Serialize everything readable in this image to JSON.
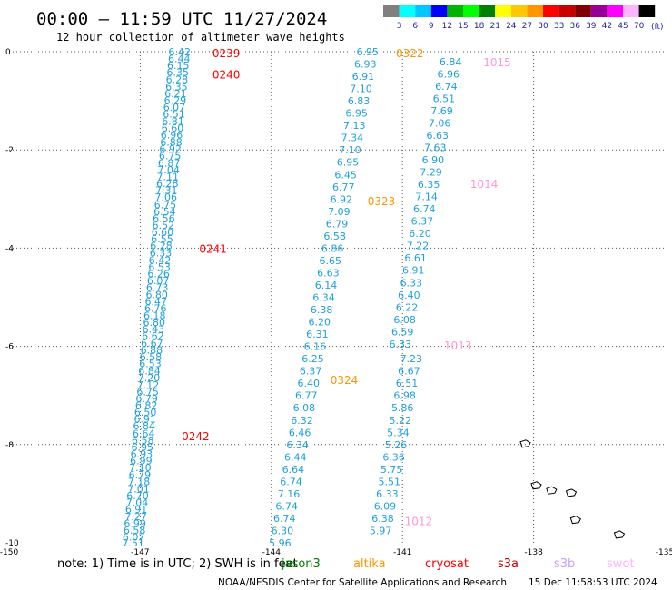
{
  "title": "00:00 – 11:59 UTC 11/27/2024",
  "subtitle": "12 hour collection of altimeter wave heights",
  "legend": {
    "unit": "(ft)",
    "colors": [
      "#808080",
      "#00ffff",
      "#00c8ff",
      "#0000ff",
      "#00b400",
      "#00ff00",
      "#008000",
      "#ffff00",
      "#ffc800",
      "#ff9600",
      "#ff0000",
      "#c80000",
      "#800000",
      "#960096",
      "#ff00ff",
      "#ffb4ff",
      "#000000"
    ],
    "labels": [
      "3",
      "6",
      "9",
      "12",
      "15",
      "18",
      "21",
      "24",
      "27",
      "30",
      "33",
      "36",
      "39",
      "42",
      "45",
      "70"
    ]
  },
  "footer": {
    "note": "note: 1) Time is in UTC; 2) SWH is in feet",
    "credit": "NOAA/NESDIS Center for Satellite Applications and Research",
    "timestamp": "15 Dec 11:58:53 UTC 2024",
    "satellites": [
      {
        "name": "jason3",
        "color": "#008000"
      },
      {
        "name": "altika",
        "color": "#ff9600"
      },
      {
        "name": "cryosat",
        "color": "#ff0000"
      },
      {
        "name": "s3a",
        "color": "#c80000"
      },
      {
        "name": "s3b",
        "color": "#c8a0ff"
      },
      {
        "name": "swot",
        "color": "#ffb4ff"
      }
    ]
  },
  "chart_data": {
    "type": "scatter",
    "xlim": [
      -150,
      -135
    ],
    "ylim": [
      -10,
      0
    ],
    "x_ticks": [
      "-150",
      "-147",
      "-144",
      "-141",
      "-138",
      "-135"
    ],
    "y_ticks": [
      "0",
      "-2",
      "-4",
      "-6",
      "-8",
      "-10"
    ],
    "grid": true,
    "tracks": [
      {
        "id": "track-1",
        "color": "#1ea0dc",
        "points": [
          {
            "x": -146.1,
            "y": 0.0,
            "v": "6.42"
          },
          {
            "x": -146.11,
            "y": -0.14,
            "v": "6.44"
          },
          {
            "x": -146.13,
            "y": -0.28,
            "v": "6.15"
          },
          {
            "x": -146.14,
            "y": -0.42,
            "v": "6.35"
          },
          {
            "x": -146.16,
            "y": -0.56,
            "v": "6.28"
          },
          {
            "x": -146.17,
            "y": -0.71,
            "v": "6.35"
          },
          {
            "x": -146.19,
            "y": -0.85,
            "v": "6.21"
          },
          {
            "x": -146.2,
            "y": -0.99,
            "v": "6.29"
          },
          {
            "x": -146.22,
            "y": -1.13,
            "v": "6.07"
          },
          {
            "x": -146.23,
            "y": -1.27,
            "v": "6.51"
          },
          {
            "x": -146.25,
            "y": -1.41,
            "v": "6.81"
          },
          {
            "x": -146.26,
            "y": -1.55,
            "v": "6.60"
          },
          {
            "x": -146.28,
            "y": -1.69,
            "v": "6.96"
          },
          {
            "x": -146.29,
            "y": -1.84,
            "v": "6.88"
          },
          {
            "x": -146.31,
            "y": -1.98,
            "v": "6.92"
          },
          {
            "x": -146.32,
            "y": -2.12,
            "v": "6.75"
          },
          {
            "x": -146.34,
            "y": -2.26,
            "v": "6.87"
          },
          {
            "x": -146.35,
            "y": -2.4,
            "v": "7.04"
          },
          {
            "x": -146.37,
            "y": -2.54,
            "v": "7.11"
          },
          {
            "x": -146.38,
            "y": -2.68,
            "v": "6.28"
          },
          {
            "x": -146.4,
            "y": -2.82,
            "v": "7.31"
          },
          {
            "x": -146.41,
            "y": -2.96,
            "v": "7.06"
          },
          {
            "x": -146.43,
            "y": -3.11,
            "v": "6.75"
          },
          {
            "x": -146.44,
            "y": -3.25,
            "v": "6.54"
          },
          {
            "x": -146.46,
            "y": -3.39,
            "v": "6.56"
          },
          {
            "x": -146.47,
            "y": -3.53,
            "v": "6.52"
          },
          {
            "x": -146.49,
            "y": -3.67,
            "v": "6.60"
          },
          {
            "x": -146.5,
            "y": -3.81,
            "v": "6.55"
          },
          {
            "x": -146.52,
            "y": -3.95,
            "v": "6.28"
          },
          {
            "x": -146.53,
            "y": -4.09,
            "v": "6.33"
          },
          {
            "x": -146.55,
            "y": -4.24,
            "v": "6.42"
          },
          {
            "x": -146.56,
            "y": -4.38,
            "v": "6.53"
          },
          {
            "x": -146.58,
            "y": -4.52,
            "v": "6.26"
          },
          {
            "x": -146.59,
            "y": -4.66,
            "v": "6.07"
          },
          {
            "x": -146.61,
            "y": -4.8,
            "v": "6.73"
          },
          {
            "x": -146.62,
            "y": -4.94,
            "v": "6.80"
          },
          {
            "x": -146.64,
            "y": -5.08,
            "v": "6.47"
          },
          {
            "x": -146.65,
            "y": -5.22,
            "v": "6.76"
          },
          {
            "x": -146.67,
            "y": -5.37,
            "v": "6.18"
          },
          {
            "x": -146.68,
            "y": -5.51,
            "v": "6.80"
          },
          {
            "x": -146.7,
            "y": -5.65,
            "v": "6.43"
          },
          {
            "x": -146.71,
            "y": -5.79,
            "v": "6.62"
          },
          {
            "x": -146.73,
            "y": -5.93,
            "v": "6.67"
          },
          {
            "x": -146.74,
            "y": -6.07,
            "v": "6.88"
          },
          {
            "x": -146.76,
            "y": -6.21,
            "v": "6.58"
          },
          {
            "x": -146.77,
            "y": -6.35,
            "v": "6.53"
          },
          {
            "x": -146.79,
            "y": -6.5,
            "v": "6.84"
          },
          {
            "x": -146.8,
            "y": -6.64,
            "v": "7.20"
          },
          {
            "x": -146.82,
            "y": -6.78,
            "v": "7.12"
          },
          {
            "x": -146.83,
            "y": -6.92,
            "v": "6.75"
          },
          {
            "x": -146.85,
            "y": -7.06,
            "v": "6.79"
          },
          {
            "x": -146.86,
            "y": -7.2,
            "v": "6.82"
          },
          {
            "x": -146.88,
            "y": -7.34,
            "v": "6.50"
          },
          {
            "x": -146.89,
            "y": -7.48,
            "v": "6.91"
          },
          {
            "x": -146.91,
            "y": -7.62,
            "v": "6.84"
          },
          {
            "x": -146.92,
            "y": -7.77,
            "v": "6.64"
          },
          {
            "x": -146.94,
            "y": -7.91,
            "v": "6.58"
          },
          {
            "x": -146.95,
            "y": -8.05,
            "v": "6.95"
          },
          {
            "x": -146.97,
            "y": -8.19,
            "v": "6.93"
          },
          {
            "x": -146.98,
            "y": -8.33,
            "v": "6.99"
          },
          {
            "x": -147.0,
            "y": -8.47,
            "v": "7.10"
          },
          {
            "x": -147.01,
            "y": -8.61,
            "v": "6.79"
          },
          {
            "x": -147.03,
            "y": -8.75,
            "v": "7.18"
          },
          {
            "x": -147.04,
            "y": -8.9,
            "v": "7.01"
          },
          {
            "x": -147.06,
            "y": -9.04,
            "v": "6.70"
          },
          {
            "x": -147.07,
            "y": -9.18,
            "v": "7.04"
          },
          {
            "x": -147.09,
            "y": -9.32,
            "v": "6.91"
          },
          {
            "x": -147.1,
            "y": -9.46,
            "v": "7.27"
          },
          {
            "x": -147.12,
            "y": -9.6,
            "v": "6.99"
          },
          {
            "x": -147.13,
            "y": -9.74,
            "v": "6.58"
          },
          {
            "x": -147.15,
            "y": -9.88,
            "v": "6.07"
          },
          {
            "x": -147.16,
            "y": -10.0,
            "v": "7.51"
          }
        ]
      },
      {
        "id": "track-2",
        "color": "#1ea0dc",
        "points": [
          {
            "x": -141.8,
            "y": 0.0,
            "v": "6.95"
          },
          {
            "x": -141.85,
            "y": -0.25,
            "v": "6.93"
          },
          {
            "x": -141.9,
            "y": -0.5,
            "v": "6.91"
          },
          {
            "x": -141.95,
            "y": -0.75,
            "v": "7.10"
          },
          {
            "x": -142.0,
            "y": -1.0,
            "v": "6.83"
          },
          {
            "x": -142.05,
            "y": -1.25,
            "v": "6.95"
          },
          {
            "x": -142.1,
            "y": -1.5,
            "v": "7.13"
          },
          {
            "x": -142.15,
            "y": -1.75,
            "v": "7.34"
          },
          {
            "x": -142.2,
            "y": -2.0,
            "v": "7.10"
          },
          {
            "x": -142.25,
            "y": -2.25,
            "v": "6.95"
          },
          {
            "x": -142.3,
            "y": -2.5,
            "v": "6.45"
          },
          {
            "x": -142.35,
            "y": -2.75,
            "v": "6.77"
          },
          {
            "x": -142.4,
            "y": -3.0,
            "v": "6.92"
          },
          {
            "x": -142.45,
            "y": -3.25,
            "v": "7.09"
          },
          {
            "x": -142.5,
            "y": -3.5,
            "v": "6.79"
          },
          {
            "x": -142.55,
            "y": -3.75,
            "v": "6.58"
          },
          {
            "x": -142.6,
            "y": -4.0,
            "v": "6.86"
          },
          {
            "x": -142.65,
            "y": -4.25,
            "v": "6.65"
          },
          {
            "x": -142.7,
            "y": -4.5,
            "v": "6.63"
          },
          {
            "x": -142.75,
            "y": -4.75,
            "v": "6.14"
          },
          {
            "x": -142.8,
            "y": -5.0,
            "v": "6.34"
          },
          {
            "x": -142.85,
            "y": -5.25,
            "v": "6.38"
          },
          {
            "x": -142.9,
            "y": -5.5,
            "v": "6.20"
          },
          {
            "x": -142.95,
            "y": -5.75,
            "v": "6.31"
          },
          {
            "x": -143.0,
            "y": -6.0,
            "v": "6.16"
          },
          {
            "x": -143.05,
            "y": -6.25,
            "v": "6.25"
          },
          {
            "x": -143.1,
            "y": -6.5,
            "v": "6.37"
          },
          {
            "x": -143.15,
            "y": -6.75,
            "v": "6.40"
          },
          {
            "x": -143.2,
            "y": -7.0,
            "v": "6.77"
          },
          {
            "x": -143.25,
            "y": -7.25,
            "v": "6.08"
          },
          {
            "x": -143.3,
            "y": -7.5,
            "v": "6.32"
          },
          {
            "x": -143.35,
            "y": -7.75,
            "v": "6.46"
          },
          {
            "x": -143.4,
            "y": -8.0,
            "v": "6.34"
          },
          {
            "x": -143.45,
            "y": -8.25,
            "v": "6.44"
          },
          {
            "x": -143.5,
            "y": -8.5,
            "v": "6.64"
          },
          {
            "x": -143.55,
            "y": -8.75,
            "v": "6.74"
          },
          {
            "x": -143.6,
            "y": -9.0,
            "v": "7.16"
          },
          {
            "x": -143.65,
            "y": -9.25,
            "v": "6.74"
          },
          {
            "x": -143.7,
            "y": -9.5,
            "v": "6.74"
          },
          {
            "x": -143.75,
            "y": -9.75,
            "v": "6.30"
          },
          {
            "x": -143.8,
            "y": -10.0,
            "v": "5.96"
          }
        ]
      },
      {
        "id": "track-3",
        "color": "#1ea0dc",
        "points": [
          {
            "x": -139.9,
            "y": -0.2,
            "v": "6.84"
          },
          {
            "x": -139.95,
            "y": -0.45,
            "v": "6.96"
          },
          {
            "x": -140.0,
            "y": -0.7,
            "v": "6.74"
          },
          {
            "x": -140.05,
            "y": -0.95,
            "v": "6.51"
          },
          {
            "x": -140.1,
            "y": -1.2,
            "v": "7.69"
          },
          {
            "x": -140.15,
            "y": -1.45,
            "v": "7.06"
          },
          {
            "x": -140.2,
            "y": -1.7,
            "v": "6.63"
          },
          {
            "x": -140.25,
            "y": -1.95,
            "v": "7.63"
          },
          {
            "x": -140.3,
            "y": -2.2,
            "v": "6.90"
          },
          {
            "x": -140.35,
            "y": -2.45,
            "v": "7.29"
          },
          {
            "x": -140.4,
            "y": -2.7,
            "v": "6.35"
          },
          {
            "x": -140.45,
            "y": -2.95,
            "v": "7.14"
          },
          {
            "x": -140.5,
            "y": -3.2,
            "v": "6.74"
          },
          {
            "x": -140.55,
            "y": -3.45,
            "v": "6.37"
          },
          {
            "x": -140.6,
            "y": -3.7,
            "v": "6.20"
          },
          {
            "x": -140.65,
            "y": -3.95,
            "v": "7.22"
          },
          {
            "x": -140.7,
            "y": -4.2,
            "v": "6.61"
          },
          {
            "x": -140.75,
            "y": -4.45,
            "v": "6.91"
          },
          {
            "x": -140.8,
            "y": -4.7,
            "v": "6.33"
          },
          {
            "x": -140.85,
            "y": -4.95,
            "v": "6.40"
          },
          {
            "x": -140.9,
            "y": -5.2,
            "v": "6.22"
          },
          {
            "x": -140.95,
            "y": -5.45,
            "v": "6.08"
          },
          {
            "x": -141.0,
            "y": -5.7,
            "v": "6.59"
          },
          {
            "x": -141.05,
            "y": -5.95,
            "v": "6.33"
          },
          {
            "x": -140.8,
            "y": -6.25,
            "v": "7.23"
          },
          {
            "x": -140.85,
            "y": -6.5,
            "v": "6.67"
          },
          {
            "x": -140.9,
            "y": -6.75,
            "v": "6.51"
          },
          {
            "x": -140.95,
            "y": -7.0,
            "v": "6.98"
          },
          {
            "x": -141.0,
            "y": -7.25,
            "v": "5.86"
          },
          {
            "x": -141.05,
            "y": -7.5,
            "v": "5.22"
          },
          {
            "x": -141.1,
            "y": -7.75,
            "v": "5.34"
          },
          {
            "x": -141.15,
            "y": -8.0,
            "v": "5.26"
          },
          {
            "x": -141.2,
            "y": -8.25,
            "v": "6.36"
          },
          {
            "x": -141.25,
            "y": -8.5,
            "v": "5.75"
          },
          {
            "x": -141.3,
            "y": -8.75,
            "v": "5.51"
          },
          {
            "x": -141.35,
            "y": -9.0,
            "v": "6.33"
          },
          {
            "x": -141.4,
            "y": -9.25,
            "v": "6.09"
          },
          {
            "x": -141.45,
            "y": -9.5,
            "v": "6.38"
          },
          {
            "x": -141.5,
            "y": -9.75,
            "v": "5.97"
          }
        ]
      }
    ],
    "time_labels": [
      {
        "x": -145.35,
        "y": -0.02,
        "text": "0239",
        "color": "#ff0000"
      },
      {
        "x": -145.35,
        "y": -0.45,
        "text": "0240",
        "color": "#ff0000"
      },
      {
        "x": -145.65,
        "y": -4.0,
        "text": "0241",
        "color": "#ff0000"
      },
      {
        "x": -146.05,
        "y": -7.82,
        "text": "0242",
        "color": "#ff0000"
      },
      {
        "x": -141.15,
        "y": -0.02,
        "text": "0322",
        "color": "#ff9600"
      },
      {
        "x": -141.8,
        "y": -3.03,
        "text": "0323",
        "color": "#ff9600"
      },
      {
        "x": -142.65,
        "y": -6.67,
        "text": "0324",
        "color": "#ff9600"
      },
      {
        "x": -139.15,
        "y": -0.2,
        "text": "1015",
        "color": "#ff96dc"
      },
      {
        "x": -139.45,
        "y": -2.68,
        "text": "1014",
        "color": "#ff96dc"
      },
      {
        "x": -140.05,
        "y": -5.97,
        "text": "1013",
        "color": "#ff96dc"
      },
      {
        "x": -140.95,
        "y": -9.55,
        "text": "1012",
        "color": "#ff96dc"
      }
    ],
    "islands": [
      {
        "x": -138.2,
        "y": -8.0
      },
      {
        "x": -137.6,
        "y": -8.95
      },
      {
        "x": -137.15,
        "y": -9.0
      },
      {
        "x": -137.05,
        "y": -9.55
      },
      {
        "x": -136.05,
        "y": -9.85
      },
      {
        "x": -137.95,
        "y": -8.85
      }
    ]
  }
}
